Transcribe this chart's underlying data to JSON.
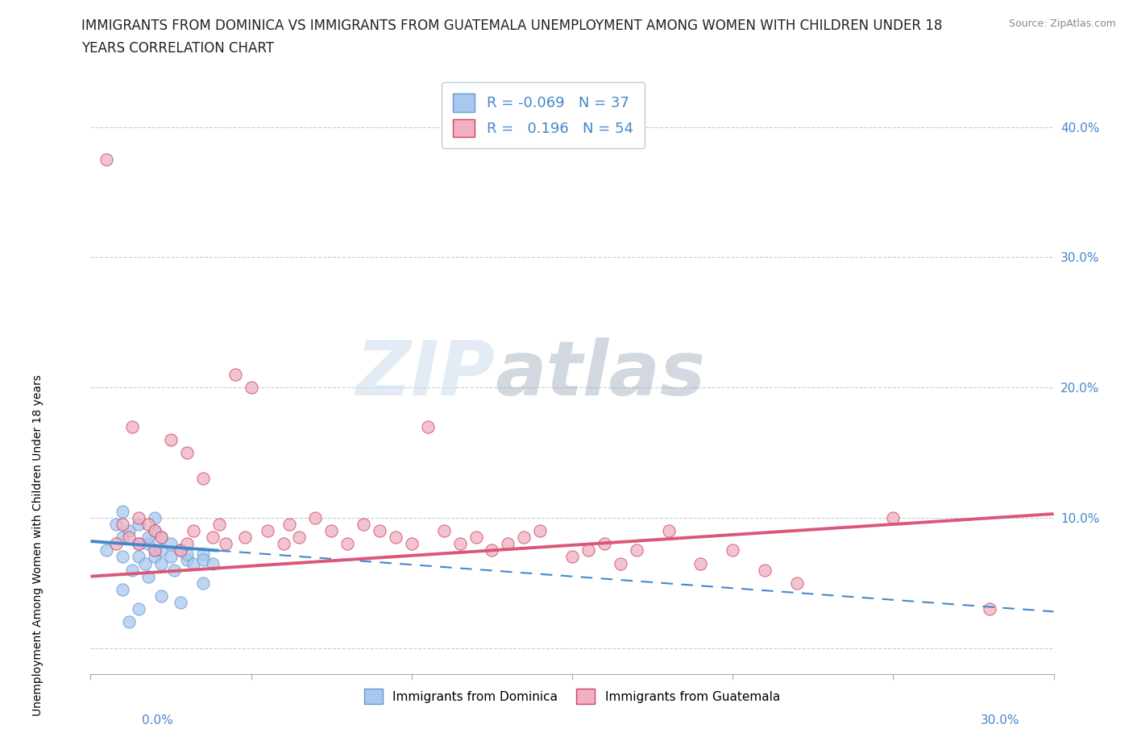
{
  "title_line1": "IMMIGRANTS FROM DOMINICA VS IMMIGRANTS FROM GUATEMALA UNEMPLOYMENT AMONG WOMEN WITH CHILDREN UNDER 18",
  "title_line2": "YEARS CORRELATION CHART",
  "source": "Source: ZipAtlas.com",
  "ylabel": "Unemployment Among Women with Children Under 18 years",
  "xlim": [
    0,
    0.3
  ],
  "ylim": [
    -0.02,
    0.44
  ],
  "yticks": [
    0.0,
    0.1,
    0.2,
    0.3,
    0.4
  ],
  "ytick_labels": [
    "",
    "10.0%",
    "20.0%",
    "30.0%",
    "40.0%"
  ],
  "grid_color": "#cccccc",
  "blue_color": "#a8c8f0",
  "pink_color": "#f0b0c0",
  "blue_line_color": "#4488cc",
  "pink_line_color": "#dd5577",
  "blue_edge_color": "#6699cc",
  "pink_edge_color": "#cc4466",
  "R_blue": -0.069,
  "N_blue": 37,
  "R_pink": 0.196,
  "N_pink": 54,
  "legend_label_blue": "Immigrants from Dominica",
  "legend_label_pink": "Immigrants from Guatemala",
  "blue_scatter_x": [
    0.005,
    0.008,
    0.01,
    0.01,
    0.01,
    0.012,
    0.013,
    0.015,
    0.015,
    0.015,
    0.017,
    0.018,
    0.018,
    0.02,
    0.02,
    0.02,
    0.02,
    0.022,
    0.022,
    0.022,
    0.025,
    0.025,
    0.026,
    0.028,
    0.03,
    0.03,
    0.032,
    0.035,
    0.035,
    0.038,
    0.01,
    0.015,
    0.018,
    0.022,
    0.028,
    0.035,
    0.012
  ],
  "blue_scatter_y": [
    0.075,
    0.095,
    0.085,
    0.07,
    0.105,
    0.09,
    0.06,
    0.08,
    0.07,
    0.095,
    0.065,
    0.08,
    0.085,
    0.075,
    0.09,
    0.07,
    0.1,
    0.065,
    0.075,
    0.085,
    0.07,
    0.08,
    0.06,
    0.075,
    0.068,
    0.072,
    0.065,
    0.072,
    0.068,
    0.065,
    0.045,
    0.03,
    0.055,
    0.04,
    0.035,
    0.05,
    0.02
  ],
  "pink_scatter_x": [
    0.005,
    0.008,
    0.01,
    0.012,
    0.013,
    0.015,
    0.015,
    0.018,
    0.02,
    0.02,
    0.022,
    0.025,
    0.028,
    0.03,
    0.03,
    0.032,
    0.035,
    0.038,
    0.04,
    0.042,
    0.045,
    0.048,
    0.05,
    0.055,
    0.06,
    0.062,
    0.065,
    0.07,
    0.075,
    0.08,
    0.085,
    0.09,
    0.095,
    0.1,
    0.105,
    0.11,
    0.115,
    0.12,
    0.125,
    0.13,
    0.135,
    0.14,
    0.15,
    0.155,
    0.16,
    0.165,
    0.17,
    0.18,
    0.19,
    0.2,
    0.21,
    0.22,
    0.25,
    0.28
  ],
  "pink_scatter_y": [
    0.375,
    0.08,
    0.095,
    0.085,
    0.17,
    0.08,
    0.1,
    0.095,
    0.075,
    0.09,
    0.085,
    0.16,
    0.075,
    0.08,
    0.15,
    0.09,
    0.13,
    0.085,
    0.095,
    0.08,
    0.21,
    0.085,
    0.2,
    0.09,
    0.08,
    0.095,
    0.085,
    0.1,
    0.09,
    0.08,
    0.095,
    0.09,
    0.085,
    0.08,
    0.17,
    0.09,
    0.08,
    0.085,
    0.075,
    0.08,
    0.085,
    0.09,
    0.07,
    0.075,
    0.08,
    0.065,
    0.075,
    0.09,
    0.065,
    0.075,
    0.06,
    0.05,
    0.1,
    0.03
  ],
  "blue_trend_x0": 0.0,
  "blue_trend_x_solid_end": 0.04,
  "blue_trend_x1": 0.3,
  "pink_trend_x0": 0.0,
  "pink_trend_x1": 0.3,
  "blue_intercept": 0.082,
  "blue_slope": -0.18,
  "pink_intercept": 0.055,
  "pink_slope": 0.16,
  "watermark_zip": "ZIP",
  "watermark_atlas": "atlas",
  "title_fontsize": 12,
  "axis_label_fontsize": 10,
  "tick_fontsize": 11,
  "marker_size": 120
}
